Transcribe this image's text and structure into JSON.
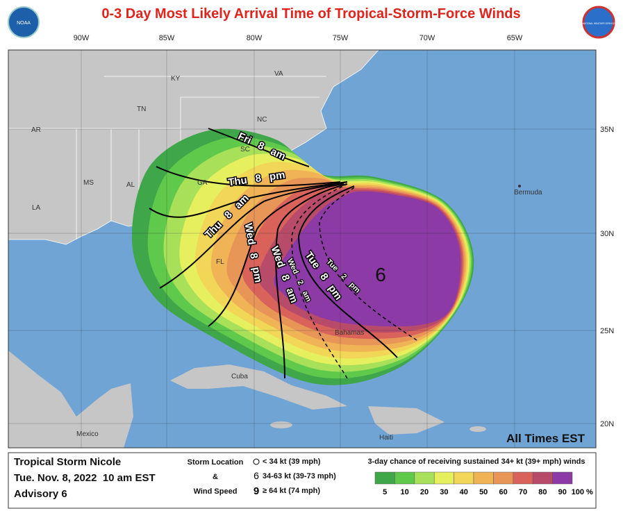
{
  "header": {
    "title": "0-3 Day Most Likely Arrival Time of Tropical-Storm-Force Winds",
    "logo_left": "NOAA",
    "logo_right": "NATIONAL WEATHER SERVICE"
  },
  "map": {
    "longitudes": [
      "90W",
      "85W",
      "80W",
      "75W",
      "70W",
      "65W"
    ],
    "latitudes": [
      "35N",
      "30N",
      "25N",
      "20N"
    ],
    "places": [
      "AR",
      "KY",
      "VA",
      "TN",
      "NC",
      "MS",
      "AL",
      "GA",
      "LA",
      "SC",
      "FL",
      "Bermuda",
      "Cuba",
      "Bahamas",
      "Mexico",
      "Haiti"
    ],
    "arrival_labels": [
      "Fri 8 am",
      "Thu 8 pm",
      "Thu 8 am",
      "Wed 8 pm",
      "Wed 8 am",
      "Tue 8 pm",
      "Wed 2 am",
      "Tue 2 pm"
    ],
    "storm_marker": "6",
    "time_note": "All Times EST"
  },
  "footer": {
    "storm_name": "Tropical Storm Nicole",
    "issued": "Tue. Nov. 8, 2022  10 am EST",
    "advisory": "Advisory 6",
    "key_title": [
      "Storm Location",
      "&",
      "Wind Speed"
    ],
    "key_items": [
      "< 34 kt (39 mph)",
      "34-63 kt (39-73 mph)",
      "≥ 64 kt (74 mph)"
    ],
    "scale_title": "3-day chance of receiving sustained 34+ kt (39+ mph) winds",
    "scale_colors": [
      "#3fa64a",
      "#5fc94c",
      "#a8e05a",
      "#e6ef5e",
      "#f1d657",
      "#f0b456",
      "#e89558",
      "#d9635a",
      "#b84a6a",
      "#8b3aa6"
    ],
    "scale_labels": [
      "5",
      "10",
      "20",
      "30",
      "40",
      "50",
      "60",
      "70",
      "80",
      "90",
      "100 %"
    ]
  }
}
